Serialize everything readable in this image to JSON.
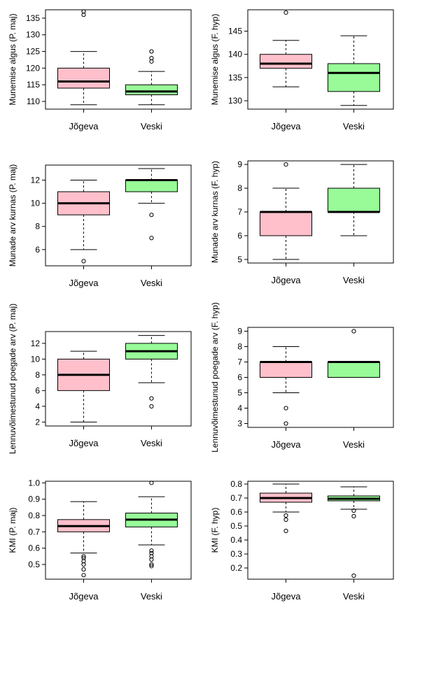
{
  "colors": {
    "jogeva": "#ffc0cb",
    "veski": "#98fb98",
    "axis": "#000000"
  },
  "chart_data": [
    {
      "type": "boxplot",
      "ylabel": "Munemise algus (P. maj)",
      "categories": [
        "Jõgeva",
        "Veski"
      ],
      "ylim": [
        107.7,
        137.5
      ],
      "yticks": [
        110,
        115,
        120,
        125,
        130,
        135
      ],
      "boxes": [
        {
          "whisker_low": 109,
          "q1": 114,
          "median": 116,
          "q3": 120,
          "whisker_high": 125,
          "outliers": [
            136,
            137
          ]
        },
        {
          "whisker_low": 109,
          "q1": 112,
          "median": 113,
          "q3": 115,
          "whisker_high": 119,
          "outliers": [
            122,
            123,
            125
          ]
        }
      ]
    },
    {
      "type": "boxplot",
      "ylabel": "Munemise algus (F. hyp)",
      "categories": [
        "Jõgeva",
        "Veski"
      ],
      "ylim": [
        128.2,
        149.6
      ],
      "yticks": [
        130,
        135,
        140,
        145
      ],
      "boxes": [
        {
          "whisker_low": 133,
          "q1": 137,
          "median": 138,
          "q3": 140,
          "whisker_high": 143,
          "outliers": [
            149
          ]
        },
        {
          "whisker_low": 129,
          "q1": 132,
          "median": 136,
          "q3": 138,
          "whisker_high": 144,
          "outliers": []
        }
      ]
    },
    {
      "type": "boxplot",
      "ylabel": "Munade arv kurnas (P. maj)",
      "categories": [
        "Jõgeva",
        "Veski"
      ],
      "ylim": [
        4.6,
        13.3
      ],
      "yticks": [
        6,
        8,
        10,
        12
      ],
      "boxes": [
        {
          "whisker_low": 6,
          "q1": 9,
          "median": 10,
          "q3": 11,
          "whisker_high": 12,
          "outliers": [
            5
          ]
        },
        {
          "whisker_low": 10,
          "q1": 11,
          "median": 12,
          "q3": 12,
          "whisker_high": 13,
          "outliers": [
            9,
            7
          ]
        }
      ]
    },
    {
      "type": "boxplot",
      "ylabel": "Munade arv kurnas (F. hyp)",
      "categories": [
        "Jõgeva",
        "Veski"
      ],
      "ylim": [
        4.85,
        9.15
      ],
      "yticks": [
        5,
        6,
        7,
        8,
        9
      ],
      "boxes": [
        {
          "whisker_low": 5,
          "q1": 6,
          "median": 7,
          "q3": 7,
          "whisker_high": 8,
          "outliers": [
            9
          ]
        },
        {
          "whisker_low": 6,
          "q1": 7,
          "median": 7,
          "q3": 8,
          "whisker_high": 9,
          "outliers": []
        }
      ]
    },
    {
      "type": "boxplot",
      "ylabel": "Lennuvõimestunud poegade arv (P. maj)",
      "categories": [
        "Jõgeva",
        "Veski"
      ],
      "ylim": [
        1.5,
        13.5
      ],
      "yticks": [
        2,
        4,
        6,
        8,
        10,
        12
      ],
      "boxes": [
        {
          "whisker_low": 2,
          "q1": 6,
          "median": 8,
          "q3": 10,
          "whisker_high": 11,
          "outliers": []
        },
        {
          "whisker_low": 7,
          "q1": 10,
          "median": 11,
          "q3": 12,
          "whisker_high": 13,
          "outliers": [
            5,
            4
          ]
        }
      ]
    },
    {
      "type": "boxplot",
      "ylabel": "Lennuvõimestunud poegade arv (F. hyp)",
      "categories": [
        "Jõgeva",
        "Veski"
      ],
      "ylim": [
        2.75,
        9.25
      ],
      "yticks": [
        3,
        4,
        5,
        6,
        7,
        8,
        9
      ],
      "boxes": [
        {
          "whisker_low": 5,
          "q1": 6,
          "median": 7,
          "q3": 7,
          "whisker_high": 8,
          "outliers": [
            4,
            3
          ]
        },
        {
          "whisker_low": 6,
          "q1": 6,
          "median": 7,
          "q3": 7,
          "whisker_high": 7,
          "outliers": [
            9
          ]
        }
      ]
    },
    {
      "type": "boxplot",
      "ylabel": "KMI (P. maj)",
      "categories": [
        "Jõgeva",
        "Veski"
      ],
      "ylim": [
        0.41,
        1.01
      ],
      "yticks": [
        0.5,
        0.6,
        0.7,
        0.8,
        0.9,
        1.0
      ],
      "boxes": [
        {
          "whisker_low": 0.57,
          "q1": 0.7,
          "median": 0.735,
          "q3": 0.775,
          "whisker_high": 0.885,
          "outliers": [
            0.55,
            0.54,
            0.52,
            0.5,
            0.47,
            0.435
          ]
        },
        {
          "whisker_low": 0.62,
          "q1": 0.73,
          "median": 0.775,
          "q3": 0.815,
          "whisker_high": 0.915,
          "outliers": [
            1.0,
            0.585,
            0.57,
            0.55,
            0.53,
            0.5,
            0.49
          ]
        }
      ]
    },
    {
      "type": "boxplot",
      "ylabel": "KMI (F. hyp)",
      "categories": [
        "Jõgeva",
        "Veski"
      ],
      "ylim": [
        0.12,
        0.82
      ],
      "yticks": [
        0.2,
        0.3,
        0.4,
        0.5,
        0.6,
        0.7,
        0.8
      ],
      "boxes": [
        {
          "whisker_low": 0.6,
          "q1": 0.67,
          "median": 0.7,
          "q3": 0.735,
          "whisker_high": 0.8,
          "outliers": [
            0.575,
            0.545,
            0.465
          ]
        },
        {
          "whisker_low": 0.62,
          "q1": 0.68,
          "median": 0.695,
          "q3": 0.715,
          "whisker_high": 0.78,
          "outliers": [
            0.61,
            0.57,
            0.145
          ]
        }
      ]
    }
  ]
}
